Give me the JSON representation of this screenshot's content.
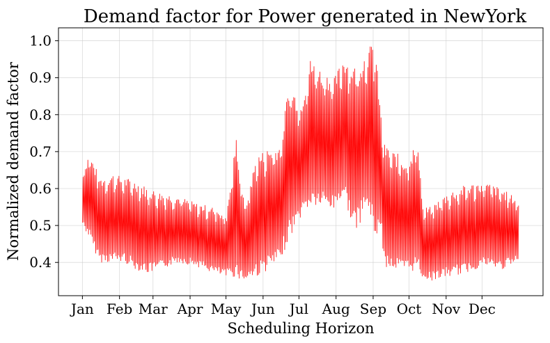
{
  "chart_data": {
    "type": "line",
    "title": "Demand factor for Power generated in NewYork",
    "xlabel": "Scheduling Horizon",
    "ylabel": "Normalized demand factor",
    "grid": true,
    "xlim": [
      -20,
      385
    ],
    "ylim": [
      0.31,
      1.035
    ],
    "x_ticks": [
      {
        "label": "Jan",
        "day": 0
      },
      {
        "label": "Feb",
        "day": 31
      },
      {
        "label": "Mar",
        "day": 59
      },
      {
        "label": "Apr",
        "day": 90
      },
      {
        "label": "May",
        "day": 120
      },
      {
        "label": "Jun",
        "day": 151
      },
      {
        "label": "Jul",
        "day": 181
      },
      {
        "label": "Aug",
        "day": 212
      },
      {
        "label": "Sep",
        "day": 243
      },
      {
        "label": "Oct",
        "day": 273
      },
      {
        "label": "Nov",
        "day": 304
      },
      {
        "label": "Dec",
        "day": 334
      }
    ],
    "y_ticks": [
      0.4,
      0.5,
      0.6,
      0.7,
      0.8,
      0.9,
      1.0
    ],
    "series": [
      {
        "name": "",
        "color": "#ff0000",
        "x_unit": "day",
        "envelope": [
          {
            "day": 0,
            "min": 0.5,
            "max": 0.64
          },
          {
            "day": 5,
            "min": 0.47,
            "max": 0.7
          },
          {
            "day": 10,
            "min": 0.43,
            "max": 0.66
          },
          {
            "day": 15,
            "min": 0.4,
            "max": 0.63
          },
          {
            "day": 25,
            "min": 0.4,
            "max": 0.64
          },
          {
            "day": 35,
            "min": 0.4,
            "max": 0.63
          },
          {
            "day": 45,
            "min": 0.38,
            "max": 0.62
          },
          {
            "day": 55,
            "min": 0.37,
            "max": 0.6
          },
          {
            "day": 65,
            "min": 0.38,
            "max": 0.59
          },
          {
            "day": 80,
            "min": 0.4,
            "max": 0.58
          },
          {
            "day": 95,
            "min": 0.39,
            "max": 0.56
          },
          {
            "day": 110,
            "min": 0.37,
            "max": 0.55
          },
          {
            "day": 120,
            "min": 0.36,
            "max": 0.53
          },
          {
            "day": 128,
            "min": 0.36,
            "max": 0.74
          },
          {
            "day": 135,
            "min": 0.35,
            "max": 0.55
          },
          {
            "day": 145,
            "min": 0.36,
            "max": 0.69
          },
          {
            "day": 155,
            "min": 0.38,
            "max": 0.71
          },
          {
            "day": 165,
            "min": 0.4,
            "max": 0.72
          },
          {
            "day": 172,
            "min": 0.46,
            "max": 0.89
          },
          {
            "day": 182,
            "min": 0.52,
            "max": 0.83
          },
          {
            "day": 190,
            "min": 0.55,
            "max": 0.95
          },
          {
            "day": 200,
            "min": 0.55,
            "max": 0.92
          },
          {
            "day": 210,
            "min": 0.54,
            "max": 0.9
          },
          {
            "day": 218,
            "min": 0.58,
            "max": 0.96
          },
          {
            "day": 228,
            "min": 0.48,
            "max": 0.93
          },
          {
            "day": 238,
            "min": 0.55,
            "max": 0.98
          },
          {
            "day": 244,
            "min": 0.47,
            "max": 1.0
          },
          {
            "day": 250,
            "min": 0.48,
            "max": 0.76
          },
          {
            "day": 252,
            "min": 0.39,
            "max": 0.72
          },
          {
            "day": 260,
            "min": 0.38,
            "max": 0.7
          },
          {
            "day": 270,
            "min": 0.37,
            "max": 0.68
          },
          {
            "day": 280,
            "min": 0.38,
            "max": 0.73
          },
          {
            "day": 284,
            "min": 0.36,
            "max": 0.55
          },
          {
            "day": 290,
            "min": 0.35,
            "max": 0.55
          },
          {
            "day": 305,
            "min": 0.36,
            "max": 0.59
          },
          {
            "day": 320,
            "min": 0.37,
            "max": 0.61
          },
          {
            "day": 335,
            "min": 0.39,
            "max": 0.62
          },
          {
            "day": 350,
            "min": 0.38,
            "max": 0.6
          },
          {
            "day": 364,
            "min": 0.4,
            "max": 0.57
          }
        ]
      }
    ]
  }
}
